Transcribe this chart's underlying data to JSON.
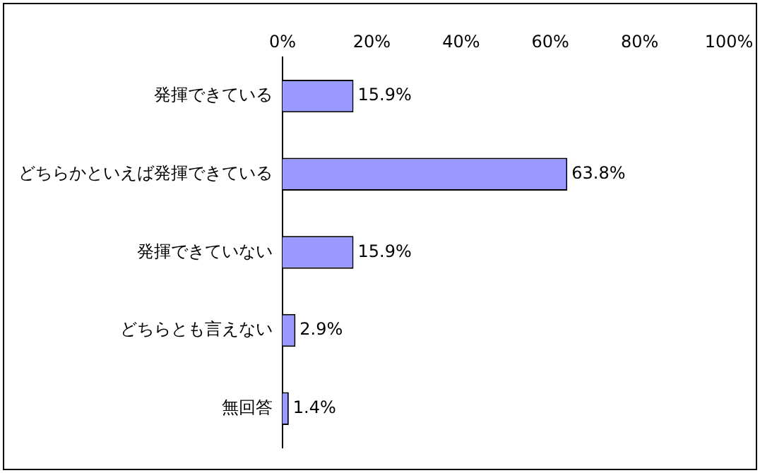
{
  "chart_data": {
    "type": "bar",
    "orientation": "horizontal",
    "categories": [
      "発揮できている",
      "どちらかといえば発揮できている",
      "発揮できていない",
      "どちらとも言えない",
      "無回答"
    ],
    "values": [
      15.9,
      63.8,
      15.9,
      2.9,
      1.4
    ],
    "value_labels": [
      "15.9%",
      "63.8%",
      "15.9%",
      "2.9%",
      "1.4%"
    ],
    "color": "#9999ff",
    "xlim": [
      0,
      100
    ],
    "xticks": [
      {
        "value": 0,
        "label": "0%"
      },
      {
        "value": 20,
        "label": "20%"
      },
      {
        "value": 40,
        "label": "40%"
      },
      {
        "value": 60,
        "label": "60%"
      },
      {
        "value": 80,
        "label": "80%"
      },
      {
        "value": 100,
        "label": "100%"
      }
    ],
    "grid": false,
    "legend": false
  }
}
